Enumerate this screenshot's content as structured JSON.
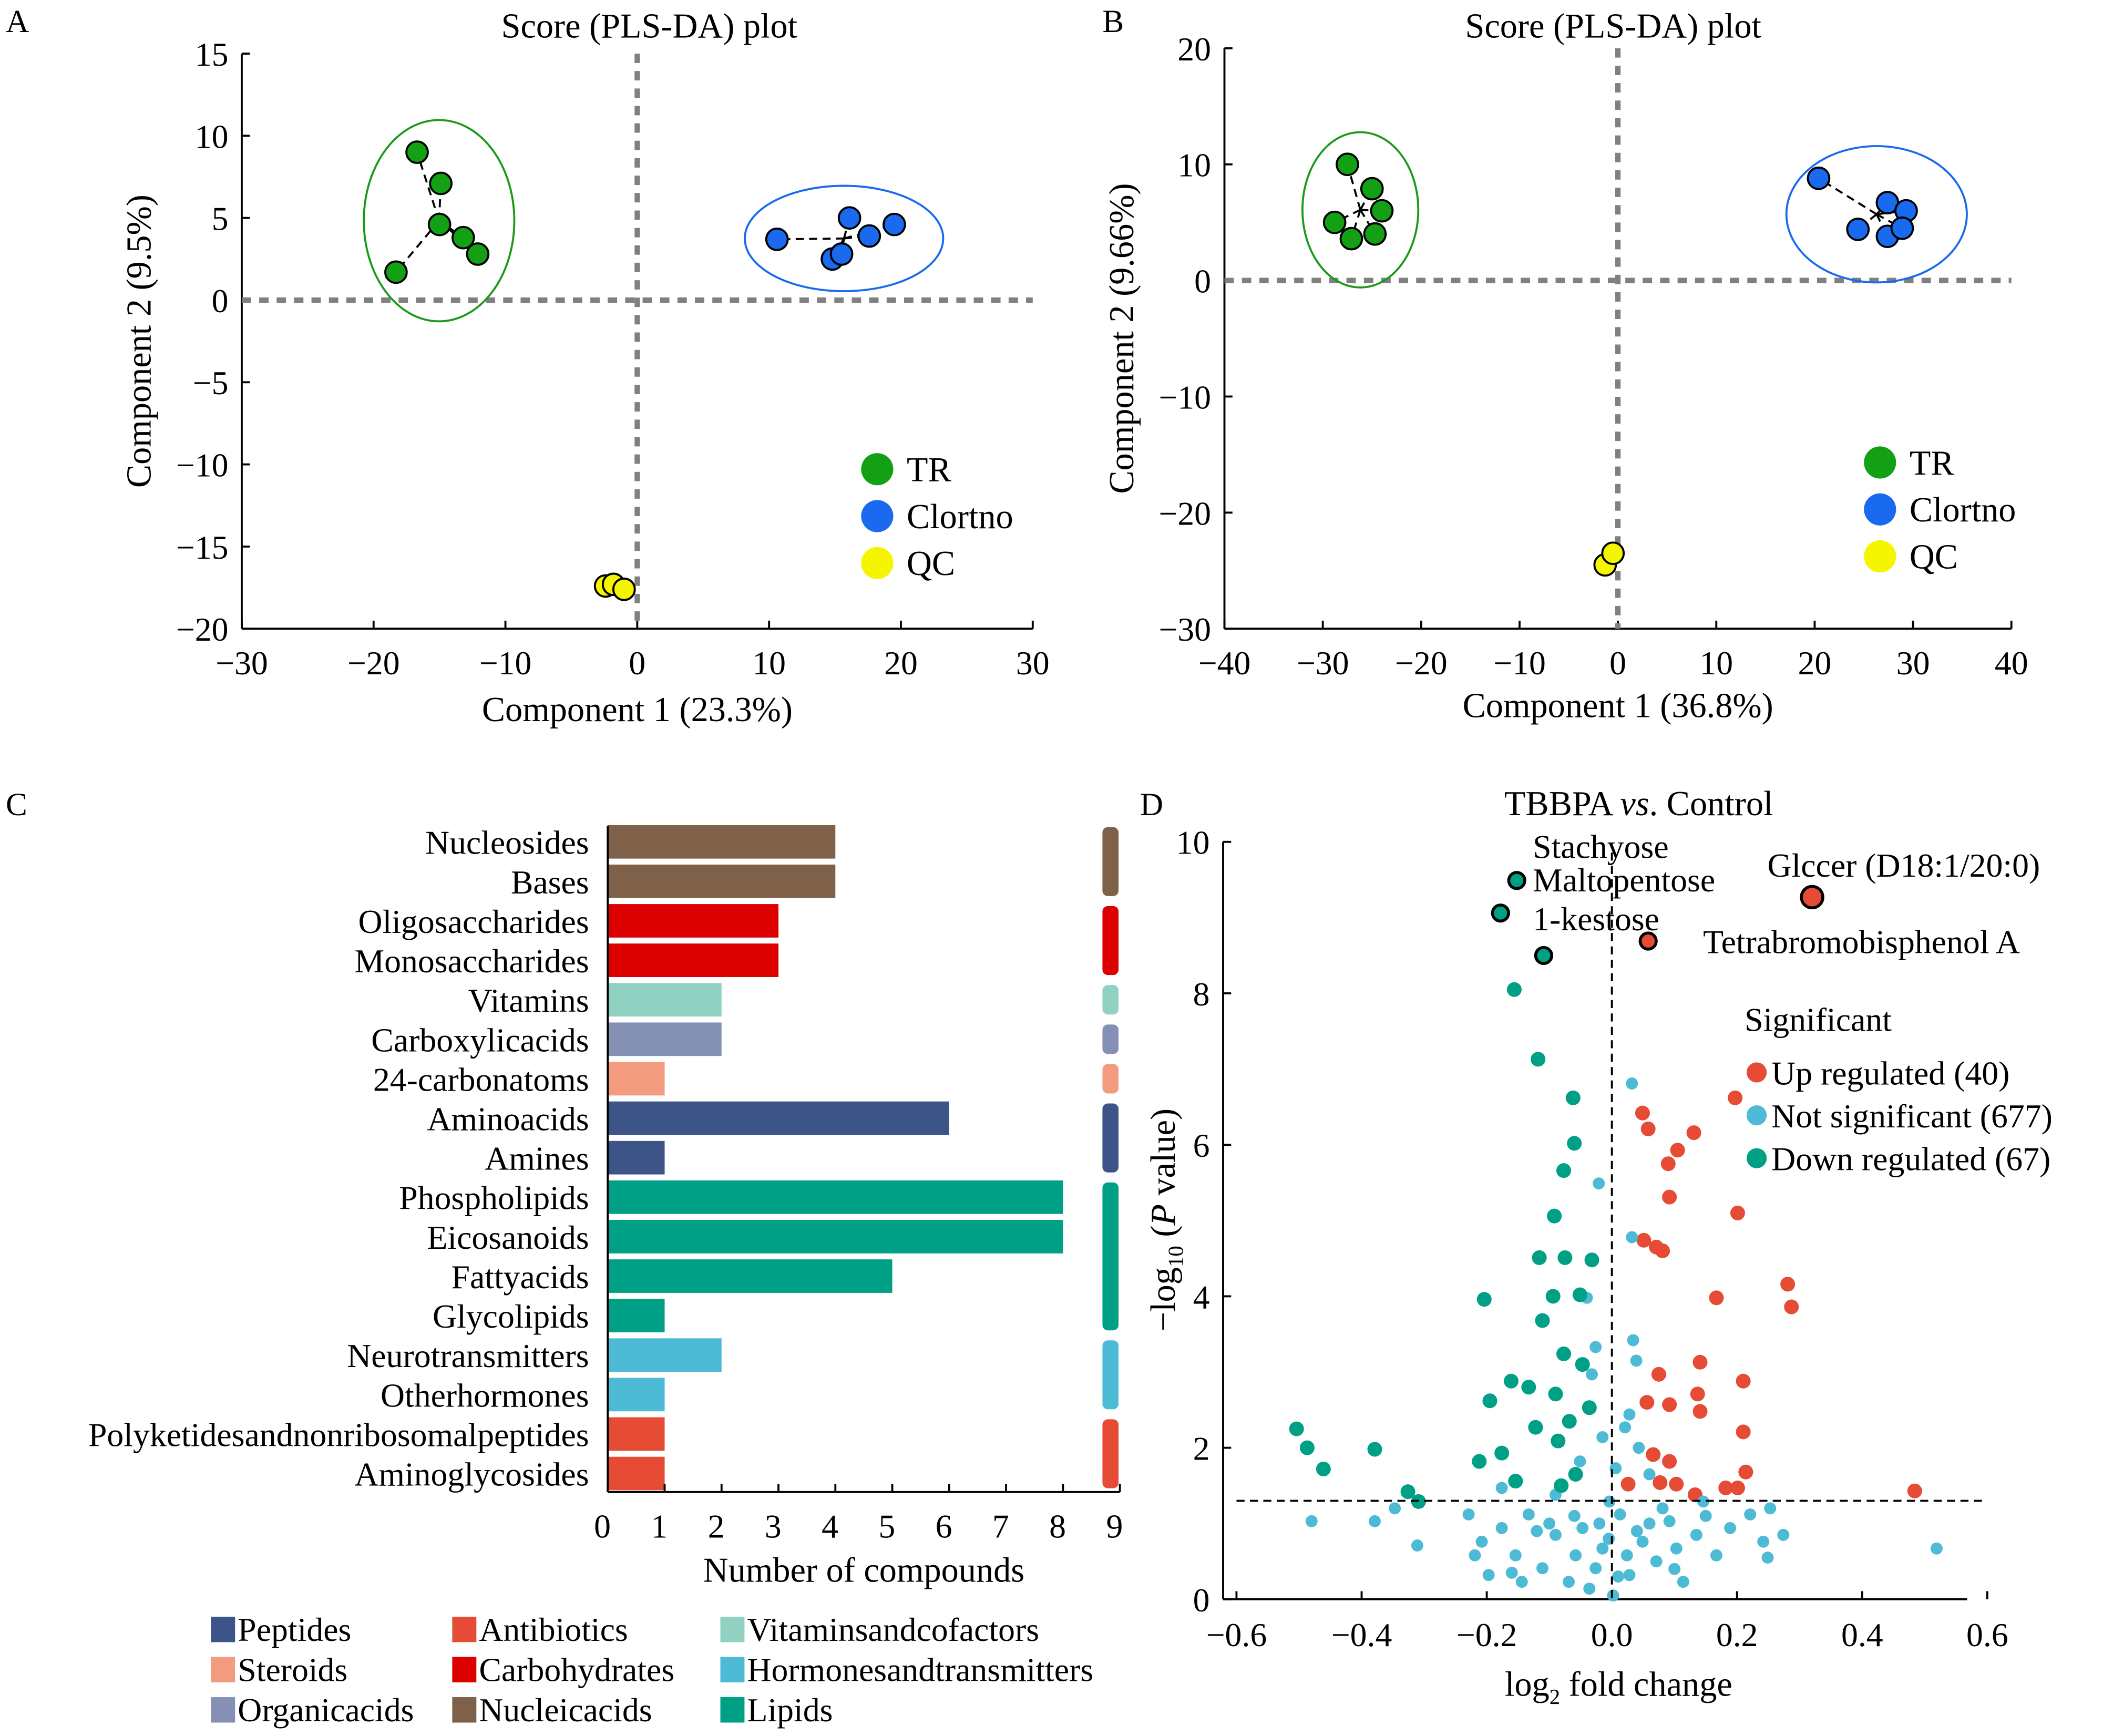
{
  "panel_letters": [
    "A",
    "B",
    "C",
    "D"
  ],
  "chart_data": [
    {
      "panel": "A",
      "type": "scatter",
      "title": "Score (PLS-DA) plot",
      "xlabel": "Component 1 (23.3%)",
      "ylabel": "Component 2 (9.5%)",
      "xlim": [
        -30,
        30
      ],
      "ylim": [
        -20,
        15
      ],
      "xticks": [
        -30,
        -20,
        -10,
        0,
        10,
        20,
        30
      ],
      "yticks": [
        -20,
        -15,
        -10,
        -5,
        0,
        5,
        10,
        15
      ],
      "zero_lines": true,
      "legend": "bottom-right",
      "series": [
        {
          "name": "TR",
          "color": "#14a014",
          "ellipse_color": "#1a9a1a",
          "points": [
            [
              -16.7,
              9.0
            ],
            [
              -14.9,
              7.1
            ],
            [
              -15.0,
              4.6
            ],
            [
              -13.2,
              3.8
            ],
            [
              -12.1,
              2.8
            ],
            [
              -18.3,
              1.7
            ]
          ]
        },
        {
          "name": "Clortno",
          "color": "#1a6af0",
          "ellipse_color": "#1a6af0",
          "points": [
            [
              10.6,
              3.7
            ],
            [
              16.1,
              5.0
            ],
            [
              14.8,
              2.5
            ],
            [
              15.5,
              2.8
            ],
            [
              17.6,
              3.9
            ],
            [
              19.5,
              4.6
            ]
          ]
        },
        {
          "name": "QC",
          "color": "#f5f500",
          "ellipse_color": null,
          "points": [
            [
              -2.4,
              -17.4
            ],
            [
              -1.8,
              -17.3
            ],
            [
              -1.0,
              -17.6
            ]
          ]
        }
      ]
    },
    {
      "panel": "B",
      "type": "scatter",
      "title": "Score (PLS-DA) plot",
      "xlabel": "Component 1 (36.8%)",
      "ylabel": "Component 2 (9.66%)",
      "xlim": [
        -40,
        40
      ],
      "ylim": [
        -30,
        20
      ],
      "xticks": [
        -40,
        -30,
        -20,
        -10,
        0,
        10,
        20,
        30,
        40
      ],
      "yticks": [
        -30,
        -20,
        -10,
        0,
        10,
        20
      ],
      "zero_lines": true,
      "legend": "bottom-right",
      "series": [
        {
          "name": "TR",
          "color": "#14a014",
          "ellipse_color": "#1a9a1a",
          "points": [
            [
              -27.5,
              10.0
            ],
            [
              -25.0,
              7.9
            ],
            [
              -24.0,
              6.0
            ],
            [
              -28.8,
              5.0
            ],
            [
              -27.1,
              3.6
            ],
            [
              -24.7,
              4.0
            ]
          ]
        },
        {
          "name": "Clortno",
          "color": "#1a6af0",
          "ellipse_color": "#1a6af0",
          "points": [
            [
              20.4,
              8.8
            ],
            [
              27.4,
              6.7
            ],
            [
              29.3,
              6.0
            ],
            [
              24.4,
              4.4
            ],
            [
              27.4,
              3.8
            ],
            [
              28.9,
              4.5
            ]
          ]
        },
        {
          "name": "QC",
          "color": "#f5f500",
          "ellipse_color": null,
          "points": [
            [
              -1.3,
              -24.5
            ],
            [
              -0.5,
              -23.5
            ]
          ]
        }
      ]
    },
    {
      "panel": "C",
      "type": "bar",
      "orientation": "horizontal",
      "xlabel": "Number of compounds",
      "xlim": [
        0,
        9
      ],
      "xticks": [
        0,
        1,
        2,
        3,
        4,
        5,
        6,
        7,
        8,
        9
      ],
      "categories": [
        "Nucleosides",
        "Bases",
        "Oligosaccharides",
        "Monosaccharides",
        "Vitamins",
        "Carboxylicacids",
        "24-carbonatoms",
        "Aminoacids",
        "Amines",
        "Phospholipids",
        "Eicosanoids",
        "Fattyacids",
        "Glycolipids",
        "Neurotransmitters",
        "Otherhormones",
        "Polyketidesandnonribosomalpeptides",
        "Aminoglycosides"
      ],
      "values": [
        4,
        4,
        3,
        3,
        2,
        2,
        1,
        6,
        1,
        8,
        8,
        5,
        1,
        2,
        1,
        1,
        1
      ],
      "groups": [
        "Nucleicacids",
        "Nucleicacids",
        "Carbohydrates",
        "Carbohydrates",
        "Vitaminsandcofactors",
        "Organicacids",
        "Steroids",
        "Peptides",
        "Peptides",
        "Lipids",
        "Lipids",
        "Lipids",
        "Lipids",
        "Hormonesandtransmitters",
        "Hormonesandtransmitters",
        "Antibiotics",
        "Antibiotics"
      ],
      "legend": [
        {
          "name": "Peptides",
          "color": "#3c5488"
        },
        {
          "name": "Steroids",
          "color": "#f39b7f"
        },
        {
          "name": "Organicacids",
          "color": "#8491b4"
        },
        {
          "name": "Antibiotics",
          "color": "#e64b35"
        },
        {
          "name": "Carbohydrates",
          "color": "#dc0000"
        },
        {
          "name": "Nucleicacids",
          "color": "#7e6148"
        },
        {
          "name": "Vitaminsandcofactors",
          "color": "#91d1c2"
        },
        {
          "name": "Hormonesandtransmitters",
          "color": "#4dbbd5"
        },
        {
          "name": "Lipids",
          "color": "#00a087"
        }
      ],
      "legend_position": "bottom"
    },
    {
      "panel": "D",
      "type": "scatter",
      "subtype": "volcano",
      "title_parts": [
        "TBBPA ",
        "vs",
        ". Control"
      ],
      "xlabel_parts": [
        "log",
        "2",
        " fold change"
      ],
      "ylabel_parts": [
        "−log",
        "10",
        " (",
        "P",
        " value)"
      ],
      "xlim": [
        -0.62,
        0.62
      ],
      "ylim": [
        0,
        10
      ],
      "xticks": [
        -0.6,
        -0.4,
        -0.2,
        0.0,
        0.2,
        0.4,
        0.6
      ],
      "yticks": [
        0,
        2,
        4,
        6,
        8,
        10
      ],
      "threshold_y": 1.3,
      "threshold_x": 0,
      "legend_title": "Significant",
      "legend_position": "right",
      "series": [
        {
          "name": "Up regulated (40)",
          "color": "#e64b35",
          "points": [
            [
              0.197,
              6.62
            ],
            [
              0.049,
              6.42
            ],
            [
              0.058,
              6.21
            ],
            [
              0.131,
              6.16
            ],
            [
              0.105,
              5.93
            ],
            [
              0.09,
              5.75
            ],
            [
              0.092,
              5.31
            ],
            [
              0.201,
              5.1
            ],
            [
              0.051,
              4.74
            ],
            [
              0.071,
              4.65
            ],
            [
              0.081,
              4.6
            ],
            [
              0.281,
              4.16
            ],
            [
              0.287,
              3.86
            ],
            [
              0.167,
              3.98
            ],
            [
              0.141,
              3.13
            ],
            [
              0.21,
              2.88
            ],
            [
              0.075,
              2.97
            ],
            [
              0.137,
              2.71
            ],
            [
              0.141,
              2.48
            ],
            [
              0.056,
              2.6
            ],
            [
              0.092,
              2.57
            ],
            [
              0.21,
              2.21
            ],
            [
              0.066,
              1.91
            ],
            [
              0.092,
              1.82
            ],
            [
              0.214,
              1.68
            ],
            [
              0.077,
              1.54
            ],
            [
              0.103,
              1.52
            ],
            [
              0.182,
              1.47
            ],
            [
              0.201,
              1.47
            ],
            [
              0.484,
              1.43
            ],
            [
              0.026,
              1.52
            ],
            [
              0.133,
              1.38
            ]
          ]
        },
        {
          "name": "Not significant (677)",
          "color": "#4dbbd5",
          "points": [
            [
              0.032,
              6.81
            ],
            [
              0.032,
              4.78
            ],
            [
              -0.021,
              5.49
            ],
            [
              -0.03,
              4.48
            ],
            [
              -0.04,
              3.98
            ],
            [
              0.034,
              3.42
            ],
            [
              -0.026,
              3.33
            ],
            [
              -0.032,
              2.97
            ],
            [
              0.039,
              3.15
            ],
            [
              0.028,
              2.44
            ],
            [
              0.021,
              2.27
            ],
            [
              -0.015,
              2.14
            ],
            [
              0.043,
              2.0
            ],
            [
              -0.051,
              1.82
            ],
            [
              0.006,
              1.73
            ],
            [
              0.06,
              1.65
            ],
            [
              -0.48,
              1.03
            ],
            [
              -0.379,
              1.03
            ],
            [
              -0.347,
              1.2
            ],
            [
              -0.311,
              0.71
            ],
            [
              -0.229,
              1.12
            ],
            [
              -0.208,
              0.76
            ],
            [
              -0.197,
              0.32
            ],
            [
              -0.176,
              0.94
            ],
            [
              -0.154,
              0.58
            ],
            [
              -0.133,
              1.12
            ],
            [
              -0.111,
              0.41
            ],
            [
              -0.09,
              0.85
            ],
            [
              -0.069,
              0.23
            ],
            [
              -0.047,
              0.94
            ],
            [
              -0.026,
              0.41
            ],
            [
              -0.015,
              0.67
            ],
            [
              0.013,
              1.12
            ],
            [
              0.028,
              0.32
            ],
            [
              0.049,
              0.76
            ],
            [
              0.071,
              0.5
            ],
            [
              0.092,
              1.03
            ],
            [
              0.114,
              0.23
            ],
            [
              0.135,
              0.85
            ],
            [
              0.167,
              0.58
            ],
            [
              0.221,
              1.12
            ],
            [
              0.242,
              0.76
            ],
            [
              0.249,
              0.55
            ],
            [
              0.274,
              0.85
            ],
            [
              0.519,
              0.67
            ],
            [
              -0.176,
              1.47
            ],
            [
              -0.09,
              1.38
            ],
            [
              -0.004,
              1.29
            ],
            [
              0.081,
              1.2
            ],
            [
              0.146,
              1.29
            ],
            [
              -0.219,
              0.58
            ],
            [
              -0.058,
              0.58
            ],
            [
              -0.036,
              0.14
            ],
            [
              0.002,
              0.05
            ],
            [
              0.024,
              0.58
            ],
            [
              0.103,
              0.67
            ],
            [
              -0.144,
              0.23
            ],
            [
              0.189,
              0.94
            ],
            [
              0.253,
              1.2
            ],
            [
              -0.12,
              0.9
            ],
            [
              -0.1,
              1.0
            ],
            [
              -0.06,
              1.1
            ],
            [
              0.04,
              0.9
            ],
            [
              0.06,
              1.0
            ],
            [
              0.1,
              0.4
            ],
            [
              0.15,
              1.1
            ],
            [
              -0.16,
              0.35
            ],
            [
              -0.005,
              0.8
            ],
            [
              0.01,
              0.3
            ],
            [
              -0.02,
              1.0
            ]
          ]
        },
        {
          "name": "Down regulated (67)",
          "color": "#00a087",
          "points": [
            [
              -0.156,
              8.05
            ],
            [
              -0.118,
              7.13
            ],
            [
              -0.062,
              6.62
            ],
            [
              -0.06,
              6.02
            ],
            [
              -0.077,
              5.66
            ],
            [
              -0.092,
              5.06
            ],
            [
              -0.116,
              4.51
            ],
            [
              -0.075,
              4.51
            ],
            [
              -0.032,
              4.48
            ],
            [
              -0.204,
              3.96
            ],
            [
              -0.094,
              4.0
            ],
            [
              -0.051,
              4.02
            ],
            [
              -0.504,
              2.25
            ],
            [
              -0.487,
              2.0
            ],
            [
              -0.461,
              1.72
            ],
            [
              -0.379,
              1.98
            ],
            [
              -0.326,
              1.42
            ],
            [
              -0.309,
              1.29
            ],
            [
              -0.212,
              1.82
            ],
            [
              -0.176,
              1.93
            ],
            [
              -0.195,
              2.62
            ],
            [
              -0.161,
              2.88
            ],
            [
              -0.133,
              2.8
            ],
            [
              -0.09,
              2.71
            ],
            [
              -0.077,
              3.24
            ],
            [
              -0.068,
              2.35
            ],
            [
              -0.122,
              2.27
            ],
            [
              -0.154,
              1.56
            ],
            [
              -0.058,
              1.65
            ],
            [
              -0.086,
              2.09
            ],
            [
              -0.036,
              2.53
            ],
            [
              -0.111,
              3.68
            ],
            [
              -0.047,
              3.1
            ],
            [
              -0.081,
              1.5
            ]
          ]
        }
      ],
      "highlighted": [
        {
          "label": "Stachyose",
          "group": "Down regulated (67)",
          "x": -0.152,
          "y": 9.49
        },
        {
          "label": "Maltopentose",
          "group": "Down regulated (67)",
          "x": -0.178,
          "y": 9.06
        },
        {
          "label": "1-kestose",
          "group": "Down regulated (67)",
          "x": -0.109,
          "y": 8.5
        },
        {
          "label": "Glccer (D18:1/20:0)",
          "group": "Up regulated (40)",
          "x": 0.32,
          "y": 9.27
        },
        {
          "label": "Tetrabromobisphenol A",
          "group": "Up regulated (40)",
          "x": 0.058,
          "y": 8.69
        }
      ]
    }
  ]
}
